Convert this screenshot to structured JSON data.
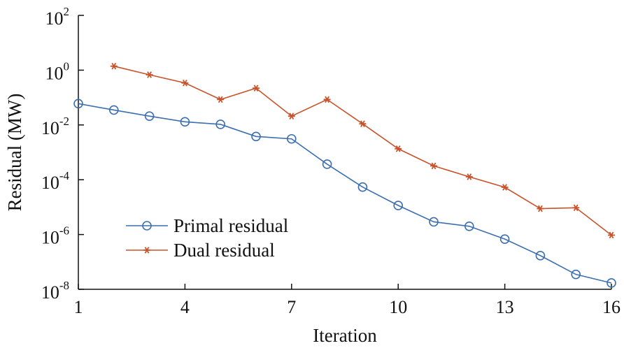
{
  "chart_data": {
    "type": "line",
    "title": "",
    "xlabel": "Iteration",
    "ylabel": "Residual (MW)",
    "xlim": [
      1,
      16
    ],
    "ylim": [
      1e-08,
      100
    ],
    "yscale": "log",
    "grid": false,
    "legend_position": "lower-left",
    "x_ticks": [
      1,
      4,
      7,
      10,
      13,
      16
    ],
    "y_ticks": [
      {
        "value": 1e-08,
        "base": "10",
        "exp": "-8"
      },
      {
        "value": 1e-06,
        "base": "10",
        "exp": "-6"
      },
      {
        "value": 0.0001,
        "base": "10",
        "exp": "-4"
      },
      {
        "value": 0.01,
        "base": "10",
        "exp": "-2"
      },
      {
        "value": 1,
        "base": "10",
        "exp": "0"
      },
      {
        "value": 100,
        "base": "10",
        "exp": "2"
      }
    ],
    "series": [
      {
        "name": "Primal residual",
        "color": "#3c6fb0",
        "marker": "circle",
        "x": [
          1,
          2,
          3,
          4,
          5,
          6,
          7,
          8,
          9,
          10,
          11,
          12,
          13,
          14,
          15,
          16
        ],
        "values": [
          0.06,
          0.035,
          0.021,
          0.013,
          0.0105,
          0.0038,
          0.0031,
          0.00037,
          5.4e-05,
          1.15e-05,
          2.9e-06,
          2e-06,
          6.8e-07,
          1.7e-07,
          3.5e-08,
          1.7e-08
        ]
      },
      {
        "name": "Dual residual",
        "color": "#c8532a",
        "marker": "star",
        "x": [
          2,
          3,
          4,
          5,
          6,
          7,
          8,
          9,
          10,
          11,
          12,
          13,
          14,
          15,
          16
        ],
        "values": [
          1.4,
          0.68,
          0.34,
          0.085,
          0.22,
          0.021,
          0.085,
          0.011,
          0.00135,
          0.00032,
          0.000128,
          5.3e-05,
          8.8e-06,
          9.5e-06,
          9.5e-07
        ]
      }
    ]
  }
}
